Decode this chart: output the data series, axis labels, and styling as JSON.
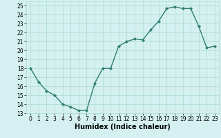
{
  "x": [
    0,
    1,
    2,
    3,
    4,
    5,
    6,
    7,
    8,
    9,
    10,
    11,
    12,
    13,
    14,
    15,
    16,
    17,
    18,
    19,
    20,
    21,
    22,
    23
  ],
  "y": [
    18,
    16.5,
    15.5,
    15,
    14,
    13.7,
    13.3,
    13.3,
    16.3,
    18,
    18,
    20.5,
    21,
    21.3,
    21.2,
    22.3,
    23.3,
    24.7,
    24.9,
    24.7,
    24.7,
    22.7,
    20.3,
    20.5
  ],
  "line_color": "#2e7d6e",
  "marker": "D",
  "markersize": 2,
  "linewidth": 1.0,
  "xlabel": "Humidex (Indice chaleur)",
  "xlim": [
    -0.5,
    23.5
  ],
  "ylim": [
    13,
    25.5
  ],
  "yticks": [
    13,
    14,
    15,
    16,
    17,
    18,
    19,
    20,
    21,
    22,
    23,
    24,
    25
  ],
  "xticks": [
    0,
    1,
    2,
    3,
    4,
    5,
    6,
    7,
    8,
    9,
    10,
    11,
    12,
    13,
    14,
    15,
    16,
    17,
    18,
    19,
    20,
    21,
    22,
    23
  ],
  "bg_color": "#d4f0f0",
  "grid_color": "#aaddcc",
  "tick_fontsize": 5.5,
  "label_fontsize": 7
}
